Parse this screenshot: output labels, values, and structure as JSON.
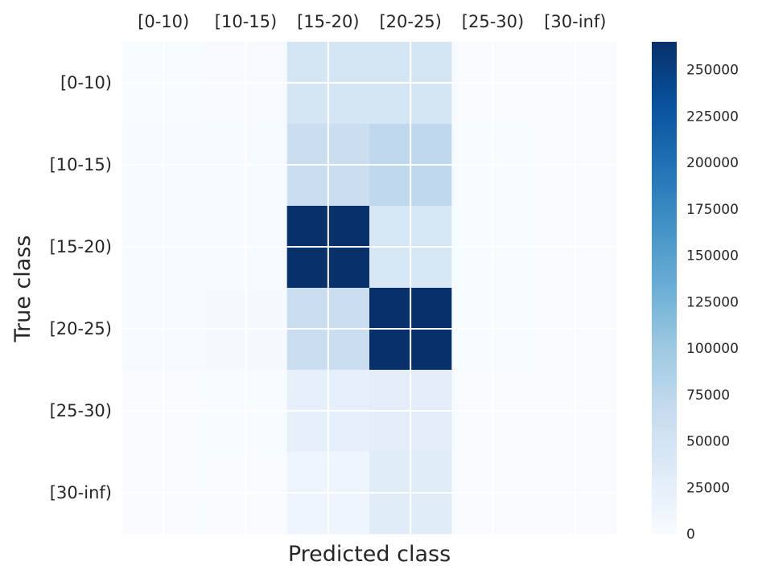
{
  "chart_data": {
    "type": "heatmap",
    "title": "",
    "xlabel": "Predicted class",
    "ylabel": "True class",
    "x_categories": [
      "[0-10)",
      "[10-15)",
      "[15-20)",
      "[20-25)",
      "[25-30)",
      "[30-inf)"
    ],
    "y_categories": [
      "[0-10)",
      "[10-15)",
      "[15-20)",
      "[20-25)",
      "[25-30)",
      "[30-inf)"
    ],
    "x_tick_position": "top",
    "values": [
      [
        1000,
        1500,
        45000,
        45000,
        500,
        200
      ],
      [
        2000,
        3000,
        60000,
        72000,
        800,
        300
      ],
      [
        2000,
        3000,
        265000,
        42000,
        800,
        300
      ],
      [
        3000,
        4000,
        60000,
        265000,
        1000,
        400
      ],
      [
        500,
        800,
        22000,
        28000,
        300,
        100
      ],
      [
        300,
        400,
        12000,
        30000,
        200,
        100
      ]
    ],
    "colormap": "Blues",
    "colorbar": {
      "min": 0,
      "max": 265000,
      "ticks": [
        0,
        25000,
        50000,
        75000,
        100000,
        125000,
        150000,
        175000,
        200000,
        225000,
        250000
      ],
      "tick_labels": [
        "0",
        "25000",
        "50000",
        "75000",
        "100000",
        "125000",
        "150000",
        "175000",
        "200000",
        "225000",
        "250000"
      ]
    },
    "grid": true,
    "grid_color": "#ffffff"
  }
}
